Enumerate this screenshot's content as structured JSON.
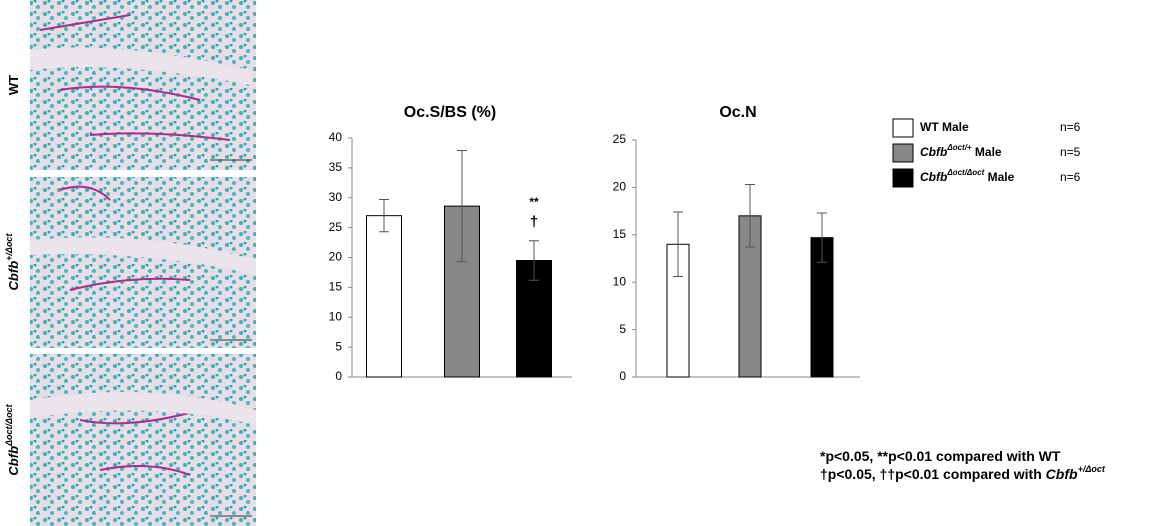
{
  "row_labels": [
    {
      "base": "WT",
      "sup": ""
    },
    {
      "base": "Cbfb",
      "sup": "+/Δoct"
    },
    {
      "base": "Cbfb",
      "sup": "Δoct/Δoct"
    }
  ],
  "chart_data": [
    {
      "type": "bar",
      "title": "Oc.S/BS (%)",
      "values": [
        27,
        28.6,
        19.5
      ],
      "errors": [
        2.7,
        9.3,
        3.3
      ],
      "colors": [
        "#ffffff",
        "#888888",
        "#000000"
      ],
      "ylim": [
        0,
        40
      ],
      "yticks": [
        0,
        5,
        10,
        15,
        20,
        25,
        30,
        35,
        40
      ],
      "annotations": [
        "**",
        "†"
      ]
    },
    {
      "type": "bar",
      "title": "Oc.N",
      "values": [
        14,
        17,
        14.7
      ],
      "errors": [
        3.4,
        3.3,
        2.6
      ],
      "colors": [
        "#ffffff",
        "#888888",
        "#000000"
      ],
      "ylim": [
        0,
        25
      ],
      "yticks": [
        0,
        5,
        10,
        15,
        20,
        25
      ]
    }
  ],
  "legend": [
    {
      "base": "WT",
      "sup": "",
      "suffix": " Male",
      "n": "n=6",
      "color": "#ffffff"
    },
    {
      "base": "Cbfb",
      "sup": "Δoct/+",
      "suffix": " Male",
      "n": "n=5",
      "color": "#888888"
    },
    {
      "base": "Cbfb",
      "sup": "Δoct/Δoct",
      "suffix": " Male",
      "n": "n=6",
      "color": "#000000"
    }
  ],
  "footnotes": [
    {
      "text": "*p<0.05, **p<0.01 compared with WT"
    },
    {
      "text": "†p<0.05, ††p<0.01 compared with ",
      "base": "Cbfb",
      "sup": "+/Δoct"
    }
  ]
}
